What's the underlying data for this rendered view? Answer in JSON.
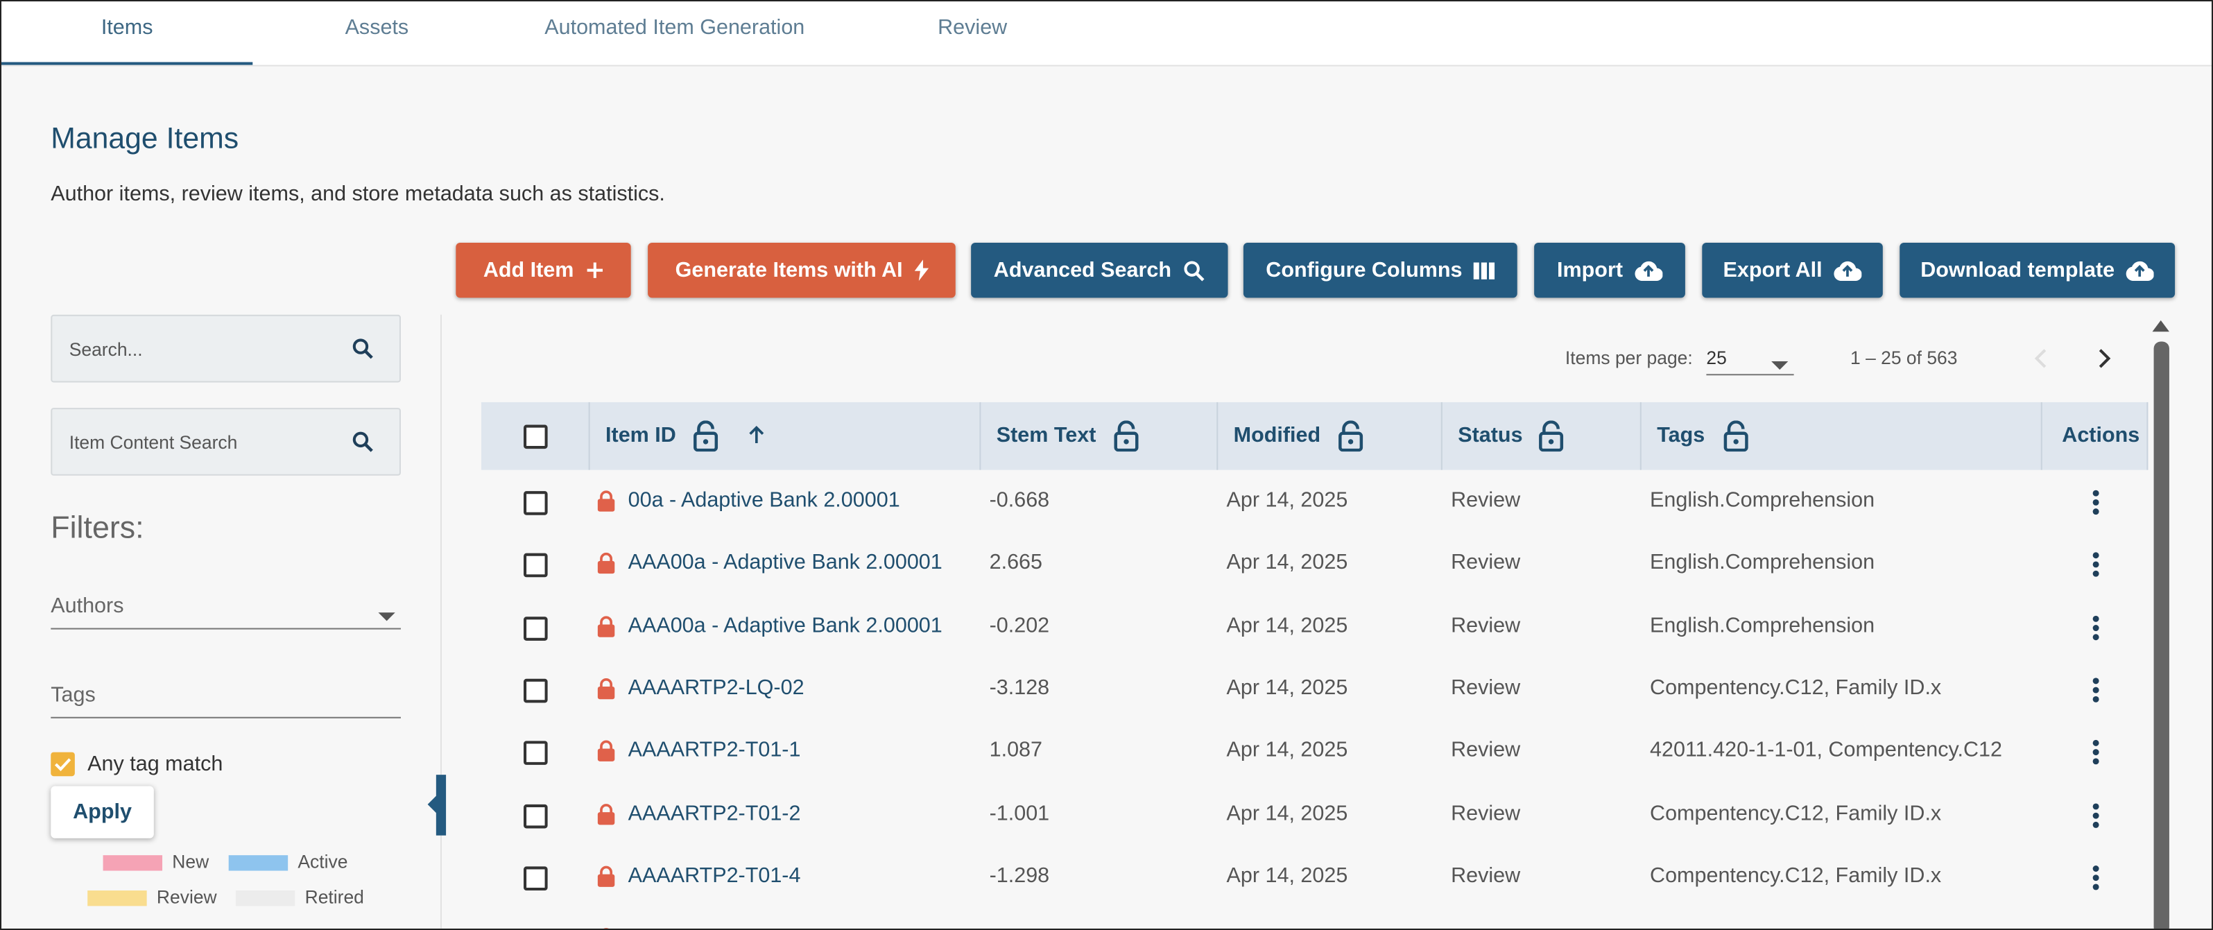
{
  "tabs": [
    "Items",
    "Assets",
    "Automated Item Generation",
    "Review"
  ],
  "header": {
    "title": "Manage Items",
    "description": "Author items, review items, and store metadata such as statistics."
  },
  "buttons": [
    "Add Item",
    "Generate Items with AI",
    "Advanced Search",
    "Configure Columns",
    "Import",
    "Export All",
    "Download template"
  ],
  "sidebar": {
    "search_placeholder": "Search...",
    "content_search_placeholder": "Item Content Search",
    "filters_title": "Filters:",
    "authors_label": "Authors",
    "tags_label": "Tags",
    "any_tag_match": "Any tag match",
    "apply": "Apply",
    "legend": [
      "New",
      "Active",
      "Review",
      "Retired"
    ]
  },
  "pagination": {
    "items_per_page_label": "Items per page:",
    "items_per_page": 25,
    "range": "1 – 25 of 563"
  },
  "table": {
    "columns": [
      "Item ID",
      "Stem Text",
      "Modified",
      "Status",
      "Tags",
      "Actions"
    ],
    "rows": [
      [
        "00a - Adaptive Bank 2.00001",
        -0.668,
        "Apr 14, 2025",
        "Review",
        "English.Comprehension"
      ],
      [
        "AAA00a - Adaptive Bank 2.00001",
        2.665,
        "Apr 14, 2025",
        "Review",
        "English.Comprehension"
      ],
      [
        "AAA00a - Adaptive Bank 2.00001",
        -0.202,
        "Apr 14, 2025",
        "Review",
        "English.Comprehension"
      ],
      [
        "AAAARTP2-LQ-02",
        -3.128,
        "Apr 14, 2025",
        "Review",
        "Compentency.C12, Family ID.x"
      ],
      [
        "AAAARTP2-T01-1",
        1.087,
        "Apr 14, 2025",
        "Review",
        "42011.420-1-1-01, Compentency.C12"
      ],
      [
        "AAAARTP2-T01-2",
        -1.001,
        "Apr 14, 2025",
        "Review",
        "Compentency.C12, Family ID.x"
      ],
      [
        "AAAARTP2-T01-4",
        -1.298,
        "Apr 14, 2025",
        "Review",
        "Compentency.C12, Family ID.x"
      ]
    ]
  }
}
